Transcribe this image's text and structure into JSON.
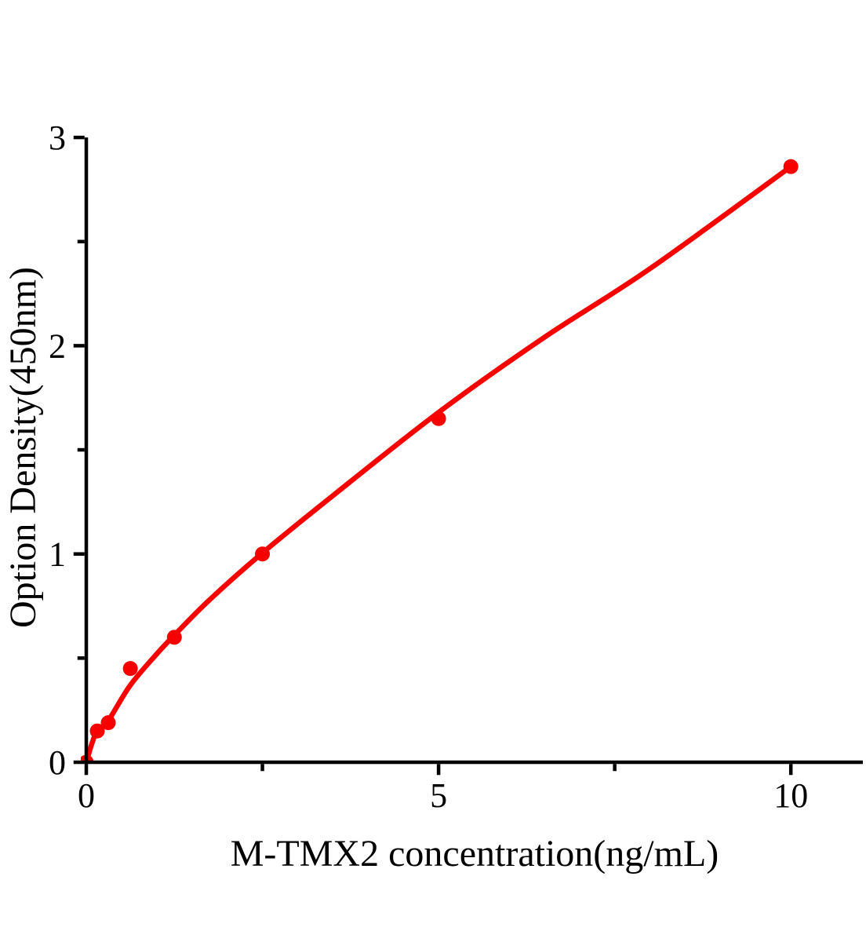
{
  "figure": {
    "background_color": "#ffffff"
  },
  "chart_data": {
    "type": "scatter",
    "title": "",
    "xlabel": "M-TMX2 concentration(ng/mL)",
    "ylabel": "Option Density(450nm)",
    "grid": false,
    "legend": false,
    "axis_color": "#000000",
    "x_axis": {
      "min": 0,
      "max": 11,
      "major_ticks": [
        0,
        5,
        10
      ],
      "minor_ticks": [
        2.5,
        7.5
      ]
    },
    "y_axis": {
      "min": 0,
      "max": 3,
      "major_ticks": [
        0,
        1,
        2,
        3
      ],
      "minor_ticks": [
        0.5,
        1.5,
        2.5
      ]
    },
    "series": [
      {
        "marker_color": "#f80000",
        "line_color": "#f80000",
        "points": [
          [
            0,
            0.0
          ],
          [
            0.156,
            0.15
          ],
          [
            0.312,
            0.19
          ],
          [
            0.625,
            0.45
          ],
          [
            1.25,
            0.6
          ],
          [
            2.5,
            1.0
          ],
          [
            5,
            1.65
          ],
          [
            10,
            2.86
          ]
        ],
        "fit_curve": [
          [
            0,
            0
          ],
          [
            0.08,
            0.09
          ],
          [
            0.156,
            0.15
          ],
          [
            0.312,
            0.2
          ],
          [
            0.625,
            0.37
          ],
          [
            1.0,
            0.52
          ],
          [
            1.25,
            0.61
          ],
          [
            1.75,
            0.78
          ],
          [
            2.5,
            1.005
          ],
          [
            3.5,
            1.28
          ],
          [
            5,
            1.68
          ],
          [
            6.5,
            2.04
          ],
          [
            8,
            2.37
          ],
          [
            10,
            2.86
          ]
        ]
      }
    ]
  }
}
